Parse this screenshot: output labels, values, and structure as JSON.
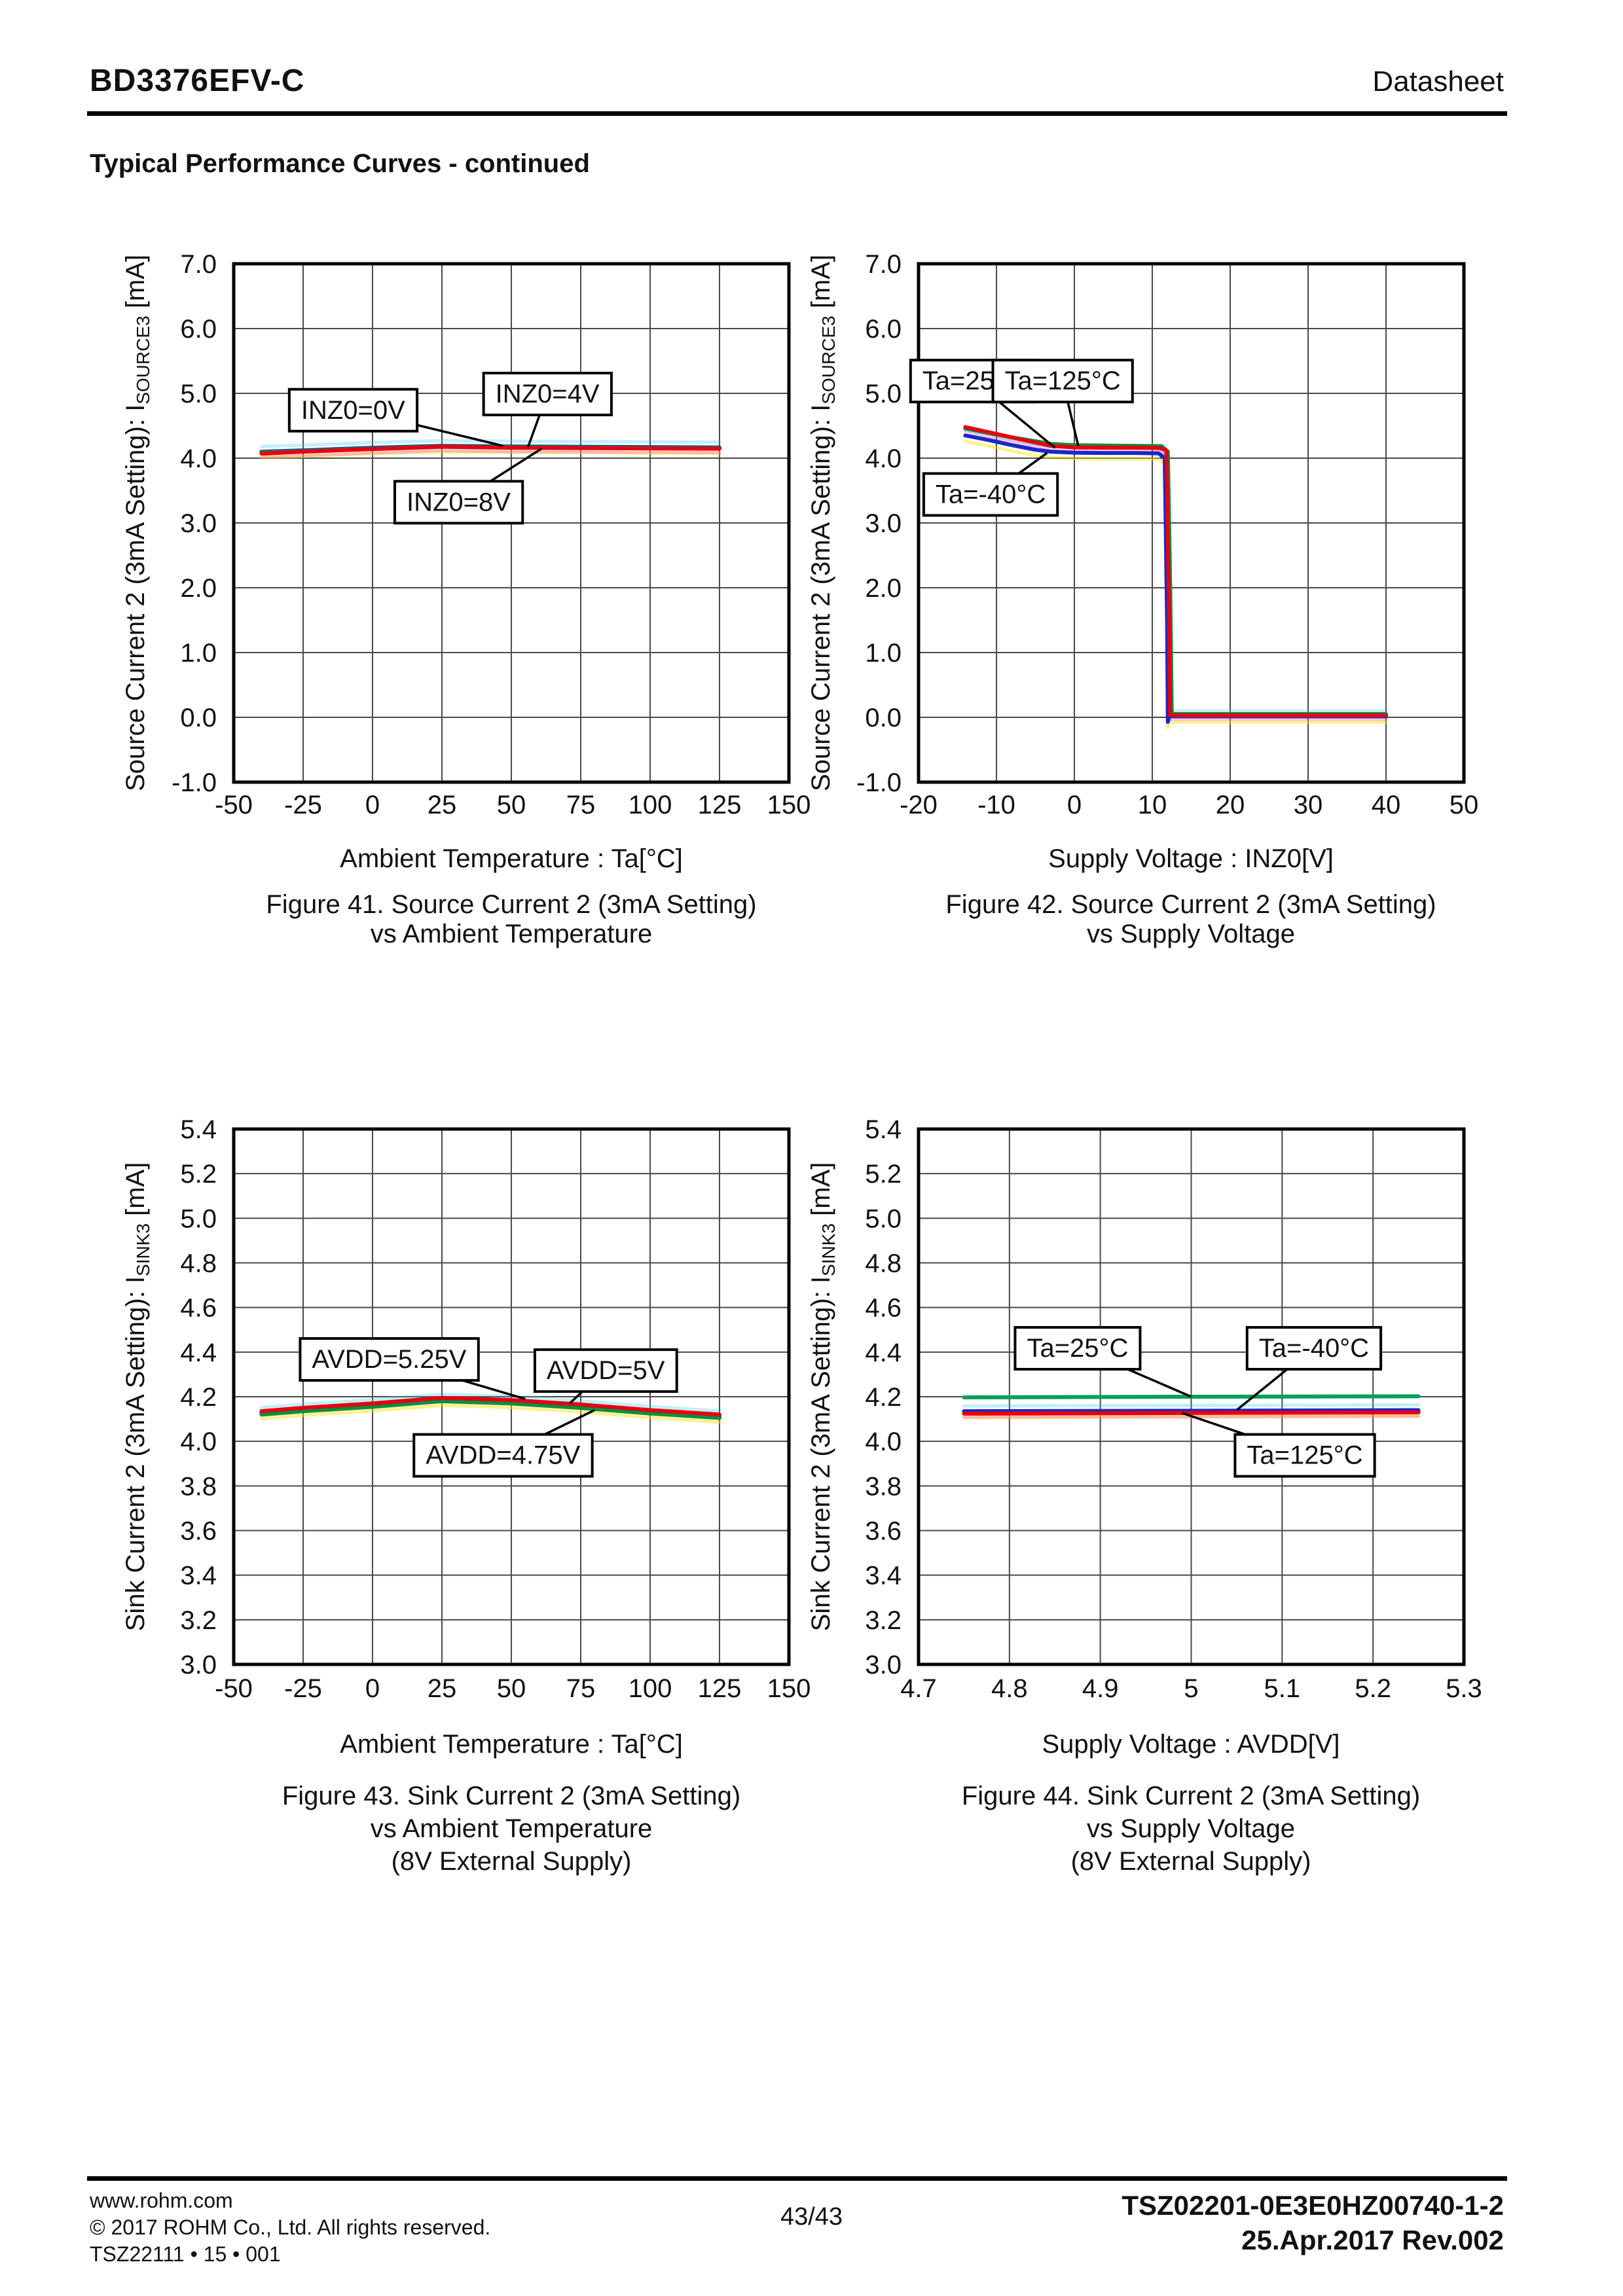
{
  "header": {
    "part_number": "BD3376EFV-C",
    "doc_type": "Datasheet"
  },
  "section_title": "Typical Performance Curves - continued",
  "chart_data": [
    {
      "type": "line",
      "caption_lines": [
        "Figure 41. Source Current 2 (3mA Setting)",
        "vs Ambient Temperature"
      ],
      "xlabel": "Ambient Temperature : Ta[°C]",
      "ylabel_parts": [
        {
          "t": "Source Current 2 (3mA Setting): I"
        },
        {
          "t": "SOURCE3",
          "sub": true
        },
        {
          "t": " [mA]"
        }
      ],
      "xlim": [
        -50,
        150
      ],
      "ylim": [
        -1,
        7
      ],
      "grid": true,
      "legend": "annotation-boxes",
      "x_ticks": [
        {
          "v": -50,
          "label": "-50"
        },
        {
          "v": -25,
          "label": "-25"
        },
        {
          "v": 0,
          "label": "0"
        },
        {
          "v": 25,
          "label": "25"
        },
        {
          "v": 50,
          "label": "50"
        },
        {
          "v": 75,
          "label": "75"
        },
        {
          "v": 100,
          "label": "100"
        },
        {
          "v": 125,
          "label": "125"
        },
        {
          "v": 150,
          "label": "150"
        }
      ],
      "y_ticks": [
        {
          "v": -1,
          "label": "-1.0"
        },
        {
          "v": 0,
          "label": "0.0"
        },
        {
          "v": 1,
          "label": "1.0"
        },
        {
          "v": 2,
          "label": "2.0"
        },
        {
          "v": 3,
          "label": "3.0"
        },
        {
          "v": 4,
          "label": "4.0"
        },
        {
          "v": 5,
          "label": "5.0"
        },
        {
          "v": 6,
          "label": "6.0"
        },
        {
          "v": 7,
          "label": "7.0"
        }
      ],
      "series": [
        {
          "name": "INZ0=0V",
          "color": "#1a28c8",
          "points": [
            [
              -40,
              4.1
            ],
            [
              -25,
              4.12
            ],
            [
              0,
              4.16
            ],
            [
              25,
              4.19
            ],
            [
              50,
              4.18
            ],
            [
              75,
              4.175
            ],
            [
              100,
              4.17
            ],
            [
              125,
              4.165
            ]
          ]
        },
        {
          "name": "INZ0=4V",
          "color": "#00913a",
          "points": [
            [
              -40,
              4.09
            ],
            [
              -25,
              4.11
            ],
            [
              0,
              4.15
            ],
            [
              25,
              4.18
            ],
            [
              50,
              4.17
            ],
            [
              75,
              4.165
            ],
            [
              100,
              4.16
            ],
            [
              125,
              4.155
            ]
          ]
        },
        {
          "name": "INZ0=8V",
          "color": "#e60012",
          "points": [
            [
              -40,
              4.07
            ],
            [
              -25,
              4.1
            ],
            [
              0,
              4.14
            ],
            [
              25,
              4.175
            ],
            [
              50,
              4.16
            ],
            [
              75,
              4.155
            ],
            [
              100,
              4.15
            ],
            [
              125,
              4.145
            ]
          ]
        }
      ],
      "annotations": [
        {
          "label": "INZ0=0V",
          "at": [
            -7,
            4.75
          ],
          "to": [
            47,
            4.19
          ]
        },
        {
          "label": "INZ0=4V",
          "at": [
            63,
            5.0
          ],
          "to": [
            56,
            4.17
          ]
        },
        {
          "label": "INZ0=8V",
          "at": [
            31,
            3.33
          ],
          "to": [
            61,
            4.15
          ]
        }
      ]
    },
    {
      "type": "line",
      "caption_lines": [
        "Figure 42. Source Current 2 (3mA Setting)",
        "vs Supply Voltage"
      ],
      "xlabel": "Supply Voltage : INZ0[V]",
      "ylabel_parts": [
        {
          "t": "Source Current 2 (3mA Setting): I"
        },
        {
          "t": "SOURCE3",
          "sub": true
        },
        {
          "t": " [mA]"
        }
      ],
      "xlim": [
        -20,
        50
      ],
      "ylim": [
        -1,
        7
      ],
      "grid": true,
      "legend": "annotation-boxes",
      "x_ticks": [
        {
          "v": -20,
          "label": "-20"
        },
        {
          "v": -10,
          "label": "-10"
        },
        {
          "v": 0,
          "label": "0"
        },
        {
          "v": 10,
          "label": "10"
        },
        {
          "v": 20,
          "label": "20"
        },
        {
          "v": 30,
          "label": "30"
        },
        {
          "v": 40,
          "label": "40"
        },
        {
          "v": 50,
          "label": "50"
        }
      ],
      "y_ticks": [
        {
          "v": -1,
          "label": "-1.0"
        },
        {
          "v": 0,
          "label": "0.0"
        },
        {
          "v": 1,
          "label": "1.0"
        },
        {
          "v": 2,
          "label": "2.0"
        },
        {
          "v": 3,
          "label": "3.0"
        },
        {
          "v": 4,
          "label": "4.0"
        },
        {
          "v": 5,
          "label": "5.0"
        },
        {
          "v": 6,
          "label": "6.0"
        },
        {
          "v": 7,
          "label": "7.0"
        }
      ],
      "series": [
        {
          "name": "Ta=-40°C",
          "color": "#1a28c8",
          "points": [
            [
              -14,
              4.35
            ],
            [
              -11,
              4.28
            ],
            [
              -8,
              4.2
            ],
            [
              -5,
              4.13
            ],
            [
              -3,
              4.1
            ],
            [
              0,
              4.085
            ],
            [
              4,
              4.08
            ],
            [
              8,
              4.08
            ],
            [
              10.8,
              4.075
            ],
            [
              11.6,
              4.0
            ],
            [
              11.9,
              1.5
            ],
            [
              12.0,
              -0.07
            ],
            [
              12.2,
              0.015
            ],
            [
              40,
              0.015
            ]
          ]
        },
        {
          "name": "Ta=125°C",
          "color": "#00913a",
          "points": [
            [
              -14,
              4.46
            ],
            [
              -11,
              4.39
            ],
            [
              -8,
              4.32
            ],
            [
              -5,
              4.26
            ],
            [
              -3,
              4.22
            ],
            [
              0,
              4.2
            ],
            [
              4,
              4.195
            ],
            [
              8,
              4.19
            ],
            [
              11.2,
              4.185
            ],
            [
              12,
              4.1
            ],
            [
              12.3,
              2.0
            ],
            [
              12.5,
              0.05
            ],
            [
              40,
              0.05
            ]
          ]
        },
        {
          "name": "Ta=25°C",
          "color": "#e60012",
          "points": [
            [
              -14,
              4.48
            ],
            [
              -11,
              4.4
            ],
            [
              -8,
              4.32
            ],
            [
              -5,
              4.24
            ],
            [
              -3,
              4.19
            ],
            [
              0,
              4.165
            ],
            [
              4,
              4.16
            ],
            [
              8,
              4.16
            ],
            [
              11,
              4.155
            ],
            [
              11.8,
              4.12
            ],
            [
              12.1,
              2.0
            ],
            [
              12.3,
              0.03
            ],
            [
              40,
              0.03
            ]
          ]
        }
      ],
      "annotations": [
        {
          "label": "Ta=25°C",
          "at": [
            -13,
            5.2
          ],
          "to": [
            -2.5,
            4.16
          ]
        },
        {
          "label": "Ta=125°C",
          "at": [
            -1.5,
            5.2
          ],
          "to": [
            0.5,
            4.19
          ]
        },
        {
          "label": "Ta=-40°C",
          "at": [
            -10.75,
            3.45
          ],
          "to": [
            -3.5,
            4.08
          ]
        }
      ]
    },
    {
      "type": "line",
      "caption_lines": [
        "Figure 43. Sink Current 2 (3mA Setting)",
        "vs Ambient Temperature",
        "(8V External Supply)"
      ],
      "xlabel": "Ambient Temperature : Ta[°C]",
      "ylabel_parts": [
        {
          "t": "Sink Current 2 (3mA Setting): I"
        },
        {
          "t": "SINK3",
          "sub": true
        },
        {
          "t": " [mA]"
        }
      ],
      "xlim": [
        -50,
        150
      ],
      "ylim": [
        3.0,
        5.4
      ],
      "grid": true,
      "legend": "annotation-boxes",
      "x_ticks": [
        {
          "v": -50,
          "label": "-50"
        },
        {
          "v": -25,
          "label": "-25"
        },
        {
          "v": 0,
          "label": "0"
        },
        {
          "v": 25,
          "label": "25"
        },
        {
          "v": 50,
          "label": "50"
        },
        {
          "v": 75,
          "label": "75"
        },
        {
          "v": 100,
          "label": "100"
        },
        {
          "v": 125,
          "label": "125"
        },
        {
          "v": 150,
          "label": "150"
        }
      ],
      "y_ticks": [
        {
          "v": 3.0,
          "label": "3.0"
        },
        {
          "v": 3.2,
          "label": "3.2"
        },
        {
          "v": 3.4,
          "label": "3.4"
        },
        {
          "v": 3.6,
          "label": "3.6"
        },
        {
          "v": 3.8,
          "label": "3.8"
        },
        {
          "v": 4.0,
          "label": "4.0"
        },
        {
          "v": 4.2,
          "label": "4.2"
        },
        {
          "v": 4.4,
          "label": "4.4"
        },
        {
          "v": 4.6,
          "label": "4.6"
        },
        {
          "v": 4.8,
          "label": "4.8"
        },
        {
          "v": 5.0,
          "label": "5.0"
        },
        {
          "v": 5.2,
          "label": "5.2"
        },
        {
          "v": 5.4,
          "label": "5.4"
        }
      ],
      "series": [
        {
          "name": "AVDD=5V",
          "color": "#1a28c8",
          "points": [
            [
              -40,
              4.128
            ],
            [
              -25,
              4.143
            ],
            [
              0,
              4.163
            ],
            [
              25,
              4.188
            ],
            [
              50,
              4.178
            ],
            [
              75,
              4.158
            ],
            [
              100,
              4.133
            ],
            [
              125,
              4.112
            ]
          ]
        },
        {
          "name": "AVDD=4.75V",
          "color": "#00913a",
          "points": [
            [
              -40,
              4.12
            ],
            [
              -25,
              4.135
            ],
            [
              0,
              4.155
            ],
            [
              25,
              4.18
            ],
            [
              50,
              4.17
            ],
            [
              75,
              4.15
            ],
            [
              100,
              4.125
            ],
            [
              125,
              4.105
            ]
          ]
        },
        {
          "name": "AVDD=5.25V",
          "color": "#e60012",
          "points": [
            [
              -40,
              4.135
            ],
            [
              -25,
              4.15
            ],
            [
              0,
              4.17
            ],
            [
              25,
              4.195
            ],
            [
              50,
              4.185
            ],
            [
              75,
              4.165
            ],
            [
              100,
              4.14
            ],
            [
              125,
              4.12
            ]
          ]
        }
      ],
      "annotations": [
        {
          "label": "AVDD=5.25V",
          "at": [
            6,
            4.37
          ],
          "to": [
            55,
            4.19
          ]
        },
        {
          "label": "AVDD=5V",
          "at": [
            84,
            4.32
          ],
          "to": [
            71,
            4.17
          ]
        },
        {
          "label": "AVDD=4.75V",
          "at": [
            47,
            3.94
          ],
          "to": [
            80,
            4.14
          ]
        }
      ]
    },
    {
      "type": "line",
      "caption_lines": [
        "Figure 44. Sink Current 2 (3mA Setting)",
        "vs Supply Voltage",
        "(8V External Supply)"
      ],
      "xlabel": "Supply Voltage : AVDD[V]",
      "ylabel_parts": [
        {
          "t": "Sink Current 2 (3mA Setting): I"
        },
        {
          "t": "SINK3",
          "sub": true
        },
        {
          "t": " [mA]"
        }
      ],
      "xlim": [
        4.7,
        5.3
      ],
      "ylim": [
        3.0,
        5.4
      ],
      "grid": true,
      "legend": "annotation-boxes",
      "x_ticks": [
        {
          "v": 4.7,
          "label": "4.7"
        },
        {
          "v": 4.8,
          "label": "4.8"
        },
        {
          "v": 4.9,
          "label": "4.9"
        },
        {
          "v": 5,
          "label": "5"
        },
        {
          "v": 5.1,
          "label": "5.1"
        },
        {
          "v": 5.2,
          "label": "5.2"
        },
        {
          "v": 5.3,
          "label": "5.3"
        }
      ],
      "y_ticks": [
        {
          "v": 3.0,
          "label": "3.0"
        },
        {
          "v": 3.2,
          "label": "3.2"
        },
        {
          "v": 3.4,
          "label": "3.4"
        },
        {
          "v": 3.6,
          "label": "3.6"
        },
        {
          "v": 3.8,
          "label": "3.8"
        },
        {
          "v": 4.0,
          "label": "4.0"
        },
        {
          "v": 4.2,
          "label": "4.2"
        },
        {
          "v": 4.4,
          "label": "4.4"
        },
        {
          "v": 4.6,
          "label": "4.6"
        },
        {
          "v": 4.8,
          "label": "4.8"
        },
        {
          "v": 5.0,
          "label": "5.0"
        },
        {
          "v": 5.2,
          "label": "5.2"
        },
        {
          "v": 5.4,
          "label": "5.4"
        }
      ],
      "series": [
        {
          "name": "Ta=-40°C",
          "color": "#1a28c8",
          "points": [
            [
              4.75,
              4.135
            ],
            [
              5.0,
              4.137
            ],
            [
              5.25,
              4.14
            ]
          ]
        },
        {
          "name": "Ta=25°C",
          "color": "#00a05a",
          "points": [
            [
              4.75,
              4.197
            ],
            [
              5.0,
              4.2
            ],
            [
              5.25,
              4.202
            ]
          ]
        },
        {
          "name": "Ta=125°C",
          "color": "#e60012",
          "points": [
            [
              4.75,
              4.124
            ],
            [
              5.0,
              4.127
            ],
            [
              5.25,
              4.13
            ]
          ]
        }
      ],
      "annotations": [
        {
          "label": "Ta=25°C",
          "at": [
            4.875,
            4.42
          ],
          "to": [
            5.0,
            4.2
          ]
        },
        {
          "label": "Ta=-40°C",
          "at": [
            5.135,
            4.42
          ],
          "to": [
            5.05,
            4.14
          ]
        },
        {
          "label": "Ta=125°C",
          "at": [
            5.125,
            3.94
          ],
          "to": [
            4.99,
            4.127
          ]
        }
      ]
    }
  ],
  "footer": {
    "website": "www.rohm.com",
    "copyright": "© 2017 ROHM Co., Ltd. All rights reserved.",
    "doc_code_left": "TSZ22111 • 15 • 001",
    "page_number": "43/43",
    "doc_code_right": "TSZ02201-0E3E0HZ00740-1-2",
    "revision": "25.Apr.2017 Rev.002"
  }
}
